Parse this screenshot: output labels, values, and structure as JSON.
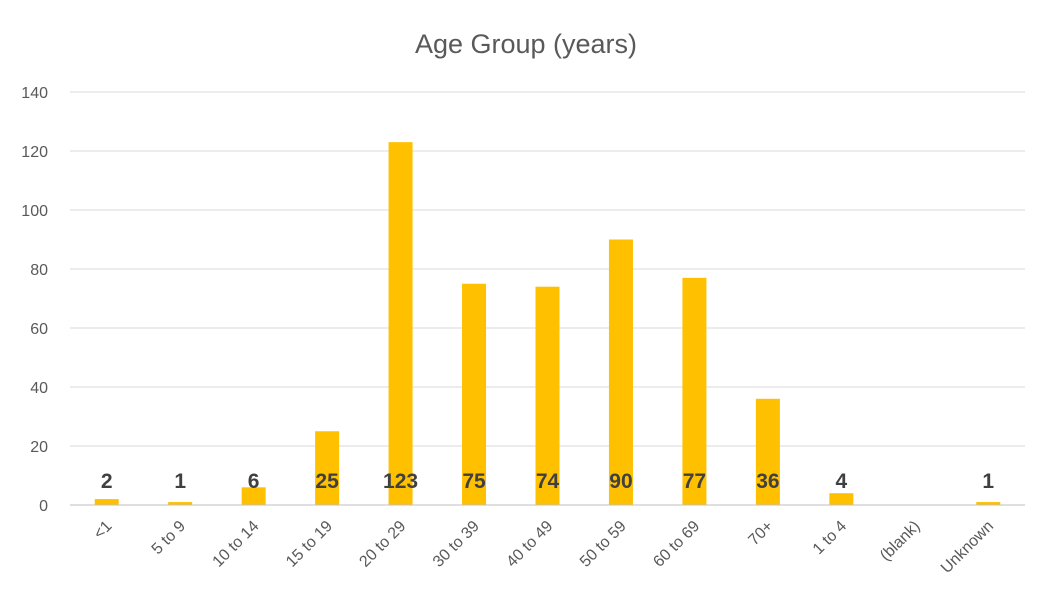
{
  "chart_data": {
    "type": "bar",
    "title": "Age Group (years)",
    "categories": [
      "<1",
      "5 to 9",
      "10 to 14",
      "15 to 19",
      "20 to 29",
      "30 to 39",
      "40 to 49",
      "50 to 59",
      "60 to 69",
      "70+",
      "1 to 4",
      "(blank)",
      "Unknown"
    ],
    "values": [
      2,
      1,
      6,
      25,
      123,
      75,
      74,
      90,
      77,
      36,
      4,
      null,
      1
    ],
    "data_labels": [
      "2",
      "1",
      "6",
      "25",
      "123",
      "75",
      "74",
      "90",
      "77",
      "36",
      "4",
      "",
      "1"
    ],
    "ylim": [
      0,
      140
    ],
    "yticks": [
      "0",
      "20",
      "40",
      "60",
      "80",
      "100",
      "120",
      "140"
    ],
    "grid": true,
    "legend": "none",
    "colors": {
      "bar": "#FFC000"
    }
  }
}
